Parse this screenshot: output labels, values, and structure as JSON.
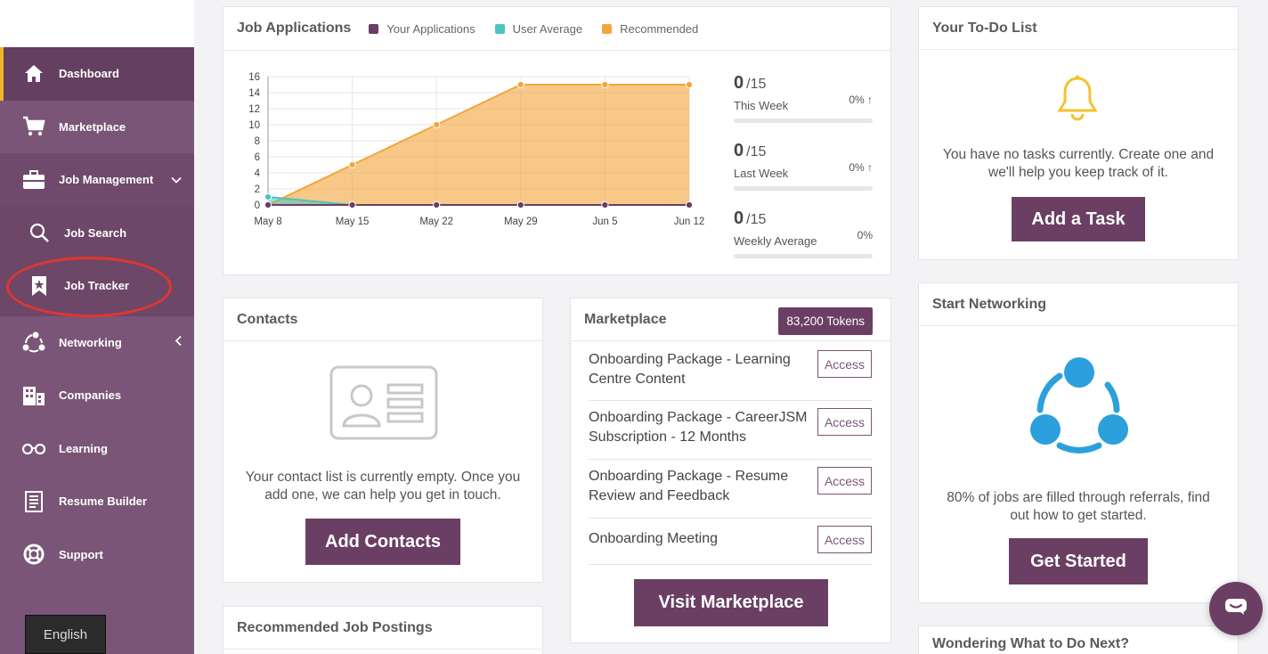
{
  "sidebar": {
    "items": [
      {
        "label": "Dashboard",
        "icon": "home-icon"
      },
      {
        "label": "Marketplace",
        "icon": "cart-icon"
      },
      {
        "label": "Job Management",
        "icon": "briefcase-icon"
      },
      {
        "label": "Job Search",
        "icon": "search-icon"
      },
      {
        "label": "Job Tracker",
        "icon": "bookmark-star-icon"
      },
      {
        "label": "Networking",
        "icon": "network-icon"
      },
      {
        "label": "Companies",
        "icon": "buildings-icon"
      },
      {
        "label": "Learning",
        "icon": "glasses-icon"
      },
      {
        "label": "Resume Builder",
        "icon": "document-icon"
      },
      {
        "label": "Support",
        "icon": "lifebuoy-icon"
      }
    ],
    "language": "English"
  },
  "job_applications": {
    "title": "Job Applications",
    "stats": [
      {
        "value": "0",
        "of": "/15",
        "label": "This Week",
        "pct": "0%"
      },
      {
        "value": "0",
        "of": "/15",
        "label": "Last Week",
        "pct": "0%"
      },
      {
        "value": "0",
        "of": "/15",
        "label": "Weekly Average",
        "pct": "0%"
      }
    ]
  },
  "chart_data": {
    "type": "area",
    "x": [
      "May  8",
      "May 15",
      "May 22",
      "May 29",
      "Jun  5",
      "Jun 12"
    ],
    "ylim": [
      0,
      16
    ],
    "yticks": [
      0,
      2,
      4,
      6,
      8,
      10,
      12,
      14,
      16
    ],
    "grid": true,
    "legend_placement": "top",
    "series": [
      {
        "name": "Your Applications",
        "color": "#6a3f63",
        "values": [
          0,
          0,
          0,
          0,
          0,
          0
        ]
      },
      {
        "name": "User Average",
        "color": "#4cc4be",
        "values": [
          1,
          0,
          0,
          0,
          0,
          0
        ]
      },
      {
        "name": "Recommended",
        "color": "#f4a43a",
        "values": [
          0,
          5,
          10,
          15,
          15,
          15
        ]
      }
    ]
  },
  "todo": {
    "title": "Your To-Do List",
    "text": "You have no tasks currently. Create one and we'll help you keep track of it.",
    "button": "Add a Task"
  },
  "contacts": {
    "title": "Contacts",
    "text": "Your contact list is currently empty. Once you add one, we can help you get in touch.",
    "button": "Add Contacts"
  },
  "marketplace": {
    "title": "Marketplace",
    "tokens": "83,200 Tokens",
    "items": [
      {
        "title": "Onboarding Package - Learning Centre Content",
        "action": "Access"
      },
      {
        "title": "Onboarding Package - CareerJSM Subscription - 12 Months",
        "action": "Access"
      },
      {
        "title": "Onboarding Package - Resume Review and Feedback",
        "action": "Access"
      },
      {
        "title": "Onboarding Meeting",
        "action": "Access"
      }
    ],
    "button": "Visit Marketplace"
  },
  "networking": {
    "title": "Start Networking",
    "text": "80% of jobs are filled through referrals, find out how to get started.",
    "button": "Get Started"
  },
  "recommended": {
    "title": "Recommended Job Postings"
  },
  "next": {
    "title": "Wondering What to Do Next?"
  }
}
